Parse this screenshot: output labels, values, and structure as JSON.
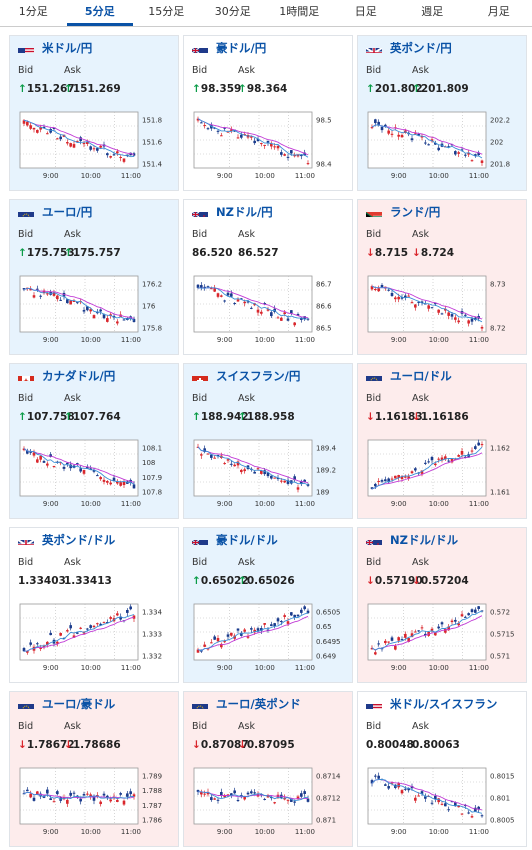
{
  "tabs": [
    "1分足",
    "5分足",
    "15分足",
    "30分足",
    "1時間足",
    "日足",
    "週足",
    "月足"
  ],
  "active_tab": 1,
  "labels": {
    "bid": "Bid",
    "ask": "Ask"
  },
  "cards": [
    {
      "pair": "米ドル/円",
      "state": "up",
      "flag": "us-flag-icon",
      "dir": "up",
      "bid": "151.267",
      "ask": "151.269",
      "yticks": [
        "151.8",
        "151.6",
        "151.4"
      ],
      "xticks": [
        "9:00",
        "10:00",
        "11:00"
      ],
      "trend": "down"
    },
    {
      "pair": "豪ドル/円",
      "state": "none",
      "flag": "au-flag-icon",
      "dir": "up",
      "bid": "98.359",
      "ask": "98.364",
      "yticks": [
        "98.5",
        "98.4"
      ],
      "xticks": [
        "9:00",
        "10:00",
        "11:00"
      ],
      "trend": "down"
    },
    {
      "pair": "英ポンド/円",
      "state": "up",
      "flag": "uk-flag-icon",
      "dir": "up",
      "bid": "201.802",
      "ask": "201.809",
      "yticks": [
        "202.2",
        "202",
        "201.8"
      ],
      "xticks": [
        "9:00",
        "10:00",
        "11:00"
      ],
      "trend": "down"
    },
    {
      "pair": "ユーロ/円",
      "state": "up",
      "flag": "eu-flag-icon",
      "dir": "up",
      "bid": "175.753",
      "ask": "175.757",
      "yticks": [
        "176.2",
        "176",
        "175.8"
      ],
      "xticks": [
        "9:00",
        "10:00",
        "11:00"
      ],
      "trend": "down"
    },
    {
      "pair": "NZドル/円",
      "state": "none",
      "flag": "nz-flag-icon",
      "dir": "none",
      "bid": "86.520",
      "ask": "86.527",
      "yticks": [
        "86.7",
        "86.6",
        "86.5"
      ],
      "xticks": [
        "9:00",
        "10:00",
        "11:00"
      ],
      "trend": "down"
    },
    {
      "pair": "ランド/円",
      "state": "down",
      "flag": "za-flag-icon",
      "dir": "down",
      "bid": "8.715",
      "ask": "8.724",
      "yticks": [
        "8.73",
        "8.72"
      ],
      "xticks": [
        "9:00",
        "10:00",
        "11:00"
      ],
      "trend": "down"
    },
    {
      "pair": "カナダドル/円",
      "state": "up",
      "flag": "ca-flag-icon",
      "dir": "up",
      "bid": "107.758",
      "ask": "107.764",
      "yticks": [
        "108.1",
        "108",
        "107.9",
        "107.8"
      ],
      "xticks": [
        "9:00",
        "10:00",
        "11:00"
      ],
      "trend": "down"
    },
    {
      "pair": "スイスフラン/円",
      "state": "up",
      "flag": "ch-flag-icon",
      "dir": "up",
      "bid": "188.942",
      "ask": "188.958",
      "yticks": [
        "189.4",
        "189.2",
        "189"
      ],
      "xticks": [
        "9:00",
        "10:00",
        "11:00"
      ],
      "trend": "down"
    },
    {
      "pair": "ユーロ/ドル",
      "state": "down",
      "flag": "eu-flag-icon",
      "dir": "down",
      "bid": "1.16183",
      "ask": "1.16186",
      "yticks": [
        "1.162",
        "1.161"
      ],
      "xticks": [
        "9:00",
        "10:00",
        "11:00"
      ],
      "trend": "up"
    },
    {
      "pair": "英ポンド/ドル",
      "state": "none",
      "flag": "uk-flag-icon",
      "dir": "none",
      "bid": "1.33403",
      "ask": "1.33413",
      "yticks": [
        "1.334",
        "1.333",
        "1.332"
      ],
      "xticks": [
        "9:00",
        "10:00",
        "11:00"
      ],
      "trend": "up"
    },
    {
      "pair": "豪ドル/ドル",
      "state": "up",
      "flag": "au-flag-icon",
      "dir": "up",
      "bid": "0.65022",
      "ask": "0.65026",
      "yticks": [
        "0.6505",
        "0.65",
        "0.6495",
        "0.649"
      ],
      "xticks": [
        "9:00",
        "10:00",
        "11:00"
      ],
      "trend": "up"
    },
    {
      "pair": "NZドル/ドル",
      "state": "down",
      "flag": "nz-flag-icon",
      "dir": "down",
      "bid": "0.57190",
      "ask": "0.57204",
      "yticks": [
        "0.572",
        "0.5715",
        "0.571"
      ],
      "xticks": [
        "9:00",
        "10:00",
        "11:00"
      ],
      "trend": "up"
    },
    {
      "pair": "ユーロ/豪ドル",
      "state": "down",
      "flag": "eu-flag-icon",
      "dir": "down",
      "bid": "1.78672",
      "ask": "1.78686",
      "yticks": [
        "1.789",
        "1.788",
        "1.787",
        "1.786"
      ],
      "xticks": [
        "9:00",
        "10:00",
        "11:00"
      ],
      "trend": "flat"
    },
    {
      "pair": "ユーロ/英ポンド",
      "state": "down",
      "flag": "eu-flag-icon",
      "dir": "down",
      "bid": "0.87087",
      "ask": "0.87095",
      "yticks": [
        "0.8714",
        "0.8712",
        "0.871"
      ],
      "xticks": [
        "9:00",
        "10:00",
        "11:00"
      ],
      "trend": "flat"
    },
    {
      "pair": "米ドル/スイスフラン",
      "state": "none",
      "flag": "us-flag-icon",
      "dir": "none",
      "bid": "0.80048",
      "ask": "0.80063",
      "yticks": [
        "0.8015",
        "0.801",
        "0.8005"
      ],
      "xticks": [
        "9:00",
        "10:00",
        "11:00"
      ],
      "trend": "down"
    }
  ],
  "colors": {
    "up_card": "#e7f3fd",
    "down_card": "#fdecec",
    "bull": "#d9262c",
    "bear": "#1a3b8c",
    "ma": "#c13bd6",
    "ma2": "#3a8fd6",
    "link": "#0a52a6"
  }
}
